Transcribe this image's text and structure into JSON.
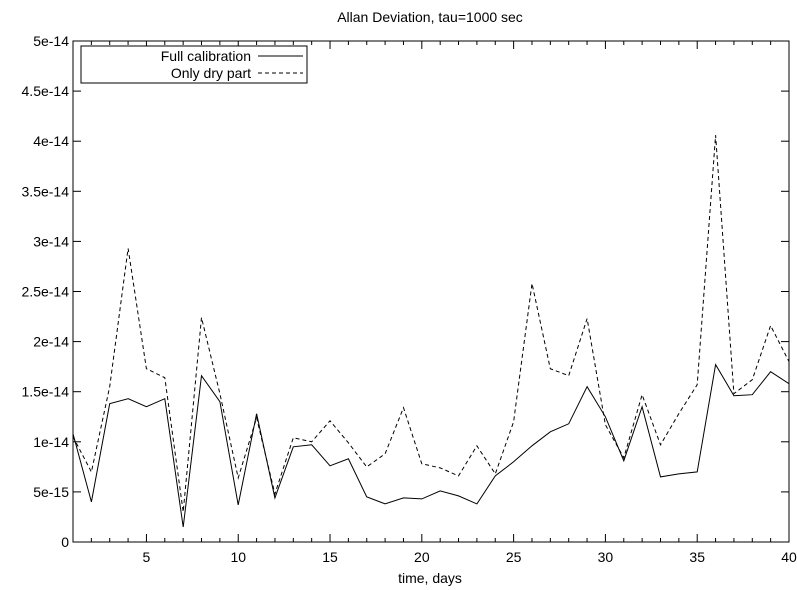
{
  "chart_data": {
    "type": "line",
    "title": "Allan Deviation, tau=1000 sec",
    "xlabel": "time, days",
    "ylabel": "",
    "xlim": [
      1,
      40
    ],
    "ylim": [
      0,
      5e-14
    ],
    "grid": false,
    "legend_position": "top-left",
    "x_ticks": [
      5,
      10,
      15,
      20,
      25,
      30,
      35,
      40
    ],
    "x_tick_labels": [
      "5",
      "10",
      "15",
      "20",
      "25",
      "30",
      "35",
      "40"
    ],
    "y_ticks": [
      0,
      5e-15,
      1e-14,
      1.5e-14,
      2e-14,
      2.5e-14,
      3e-14,
      3.5e-14,
      4e-14,
      4.5e-14,
      5e-14
    ],
    "y_tick_labels": [
      "0",
      "5e-15",
      "1e-14",
      "1.5e-14",
      "2e-14",
      "2.5e-14",
      "3e-14",
      "3.5e-14",
      "4e-14",
      "4.5e-14",
      "5e-14"
    ],
    "x": [
      1,
      2,
      3,
      4,
      5,
      6,
      7,
      8,
      9,
      10,
      11,
      12,
      13,
      14,
      15,
      16,
      17,
      18,
      19,
      20,
      21,
      22,
      23,
      24,
      25,
      26,
      27,
      28,
      29,
      30,
      31,
      32,
      33,
      34,
      35,
      36,
      37,
      38,
      39,
      40
    ],
    "series": [
      {
        "name": "Full calibration",
        "style": "solid",
        "color": "#000000",
        "values": [
          1.08e-14,
          4e-15,
          1.38e-14,
          1.43e-14,
          1.35e-14,
          1.43e-14,
          1.5e-15,
          1.66e-14,
          1.4e-14,
          3.7e-15,
          1.28e-14,
          4.4e-15,
          9.5e-15,
          9.7e-15,
          7.6e-15,
          8.3e-15,
          4.5e-15,
          3.8e-15,
          4.4e-15,
          4.3e-15,
          5.1e-15,
          4.6e-15,
          3.8e-15,
          6.6e-15,
          8e-15,
          9.6e-15,
          1.1e-14,
          1.18e-14,
          1.55e-14,
          1.25e-14,
          8.1e-15,
          1.35e-14,
          6.5e-15,
          6.8e-15,
          7e-15,
          1.77e-14,
          1.46e-14,
          1.47e-14,
          1.7e-14,
          1.58e-14
        ]
      },
      {
        "name": "Only dry part",
        "style": "dashed",
        "color": "#000000",
        "values": [
          1.05e-14,
          7e-15,
          1.55e-14,
          2.93e-14,
          1.73e-14,
          1.64e-14,
          3e-15,
          2.24e-14,
          1.48e-14,
          6.4e-15,
          1.24e-14,
          4.8e-15,
          1.04e-14,
          1e-14,
          1.21e-14,
          9.9e-15,
          7.5e-15,
          8.8e-15,
          1.34e-14,
          7.8e-15,
          7.4e-15,
          6.6e-15,
          9.6e-15,
          6.8e-15,
          1.2e-14,
          2.58e-14,
          1.73e-14,
          1.66e-14,
          2.23e-14,
          1.17e-14,
          8.4e-15,
          1.47e-14,
          9.7e-15,
          1.28e-14,
          1.57e-14,
          4.06e-14,
          1.48e-14,
          1.62e-14,
          2.16e-14,
          1.8e-14
        ]
      }
    ]
  }
}
